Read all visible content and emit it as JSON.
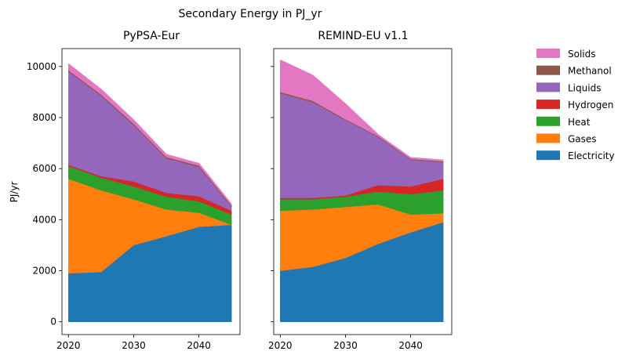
{
  "figure": {
    "suptitle": "Secondary Energy in PJ_yr"
  },
  "legend": {
    "placement": "outside-right",
    "entries": [
      {
        "label": "Solids",
        "color": "#e377c2"
      },
      {
        "label": "Methanol",
        "color": "#8c564b"
      },
      {
        "label": "Liquids",
        "color": "#9467bd"
      },
      {
        "label": "Hydrogen",
        "color": "#d62728"
      },
      {
        "label": "Heat",
        "color": "#2ca02c"
      },
      {
        "label": "Gases",
        "color": "#ff7f0e"
      },
      {
        "label": "Electricity",
        "color": "#1f77b4"
      }
    ]
  },
  "chart_data": [
    {
      "type": "area",
      "stacked": true,
      "title": "PyPSA-Eur",
      "xlabel": "",
      "ylabel": "PJ/yr",
      "x": [
        2020,
        2025,
        2030,
        2035,
        2040,
        2045
      ],
      "xticks": [
        2020,
        2030,
        2040
      ],
      "yticks": [
        0,
        2000,
        4000,
        6000,
        8000,
        10000
      ],
      "xlim": [
        2019,
        2046.3
      ],
      "ylim": [
        -500,
        10700
      ],
      "series": [
        {
          "name": "Electricity",
          "color": "#1f77b4",
          "values": [
            1900,
            1950,
            3000,
            3350,
            3720,
            3800
          ]
        },
        {
          "name": "Gases",
          "color": "#ff7f0e",
          "values": [
            3700,
            3200,
            1800,
            1050,
            550,
            0
          ]
        },
        {
          "name": "Heat",
          "color": "#2ca02c",
          "values": [
            500,
            500,
            500,
            500,
            450,
            400
          ]
        },
        {
          "name": "Hydrogen",
          "color": "#d62728",
          "values": [
            50,
            50,
            200,
            150,
            200,
            150
          ]
        },
        {
          "name": "Liquids",
          "color": "#9467bd",
          "values": [
            3650,
            3150,
            2200,
            1350,
            1150,
            150
          ]
        },
        {
          "name": "Methanol",
          "color": "#8c564b",
          "values": [
            50,
            50,
            50,
            50,
            50,
            50
          ]
        },
        {
          "name": "Solids",
          "color": "#e377c2",
          "values": [
            250,
            200,
            150,
            100,
            80,
            50
          ]
        }
      ]
    },
    {
      "type": "area",
      "stacked": true,
      "title": "REMIND-EU v1.1",
      "xlabel": "",
      "ylabel": "",
      "x": [
        2020,
        2025,
        2030,
        2035,
        2040,
        2045
      ],
      "xticks": [
        2020,
        2030,
        2040
      ],
      "yticks": [
        0,
        2000,
        4000,
        6000,
        8000,
        10000
      ],
      "xlim": [
        2019,
        2046.3
      ],
      "ylim": [
        -500,
        10700
      ],
      "series": [
        {
          "name": "Electricity",
          "color": "#1f77b4",
          "values": [
            2000,
            2150,
            2500,
            3050,
            3500,
            3900
          ]
        },
        {
          "name": "Gases",
          "color": "#ff7f0e",
          "values": [
            2350,
            2250,
            2000,
            1550,
            700,
            350
          ]
        },
        {
          "name": "Heat",
          "color": "#2ca02c",
          "values": [
            450,
            400,
            400,
            500,
            800,
            900
          ]
        },
        {
          "name": "Hydrogen",
          "color": "#d62728",
          "values": [
            50,
            50,
            50,
            250,
            300,
            450
          ]
        },
        {
          "name": "Liquids",
          "color": "#9467bd",
          "values": [
            4100,
            3750,
            2950,
            1900,
            1050,
            650
          ]
        },
        {
          "name": "Methanol",
          "color": "#8c564b",
          "values": [
            50,
            50,
            30,
            30,
            30,
            30
          ]
        },
        {
          "name": "Solids",
          "color": "#e377c2",
          "values": [
            1250,
            1000,
            600,
            50,
            50,
            50
          ]
        }
      ]
    }
  ]
}
